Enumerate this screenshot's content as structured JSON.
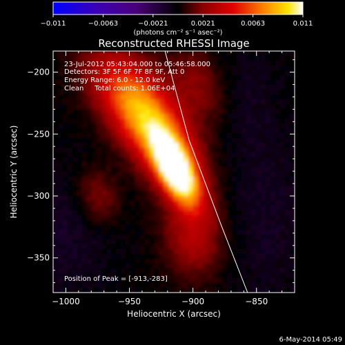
{
  "colorbar": {
    "ticks": [
      "-0.011",
      "-0.0063",
      "-0.0021",
      "0.0021",
      "0.0063",
      "0.011"
    ],
    "unit_label": "(photons cm⁻² s⁻¹ asec⁻²)"
  },
  "chart_data": {
    "type": "heatmap",
    "title": "Reconstructed RHESSI Image",
    "xlabel": "Heliocentric X (arcsec)",
    "ylabel": "Heliocentric Y (arcsec)",
    "xlim": [
      -1010,
      -820
    ],
    "ylim": [
      -378,
      -183
    ],
    "x_ticks": [
      -1000,
      -950,
      -900,
      -850
    ],
    "y_ticks": [
      -200,
      -250,
      -300,
      -350
    ],
    "x_tick_labels": [
      "−1000",
      "−950",
      "−900",
      "−850"
    ],
    "y_tick_labels": [
      "−200",
      "−250",
      "−300",
      "−350"
    ],
    "color_range": [
      -0.011,
      0.011
    ],
    "colormap": "RHESSI rainbow-to-heat (blue-purple → black → red → yellow → white)",
    "peak_position": [
      -913,
      -283
    ],
    "annotations": [
      "23-Jul-2012 05:43:04.000 to 05:46:58.000",
      "Detectors: 3F 5F 6F 7F 8F 9F, Att 0",
      "Energy Range: 6.0 - 12.0 keV",
      "Clean     Total counts: 1.06E+04",
      "Position of Peak = [-913,-283]"
    ],
    "limb_line": [
      [
        -922,
        -183
      ],
      [
        -903,
        -255
      ],
      [
        -878,
        -323
      ],
      [
        -857,
        -378
      ]
    ]
  },
  "footer": {
    "timestamp": "6-May-2014 05:49"
  }
}
